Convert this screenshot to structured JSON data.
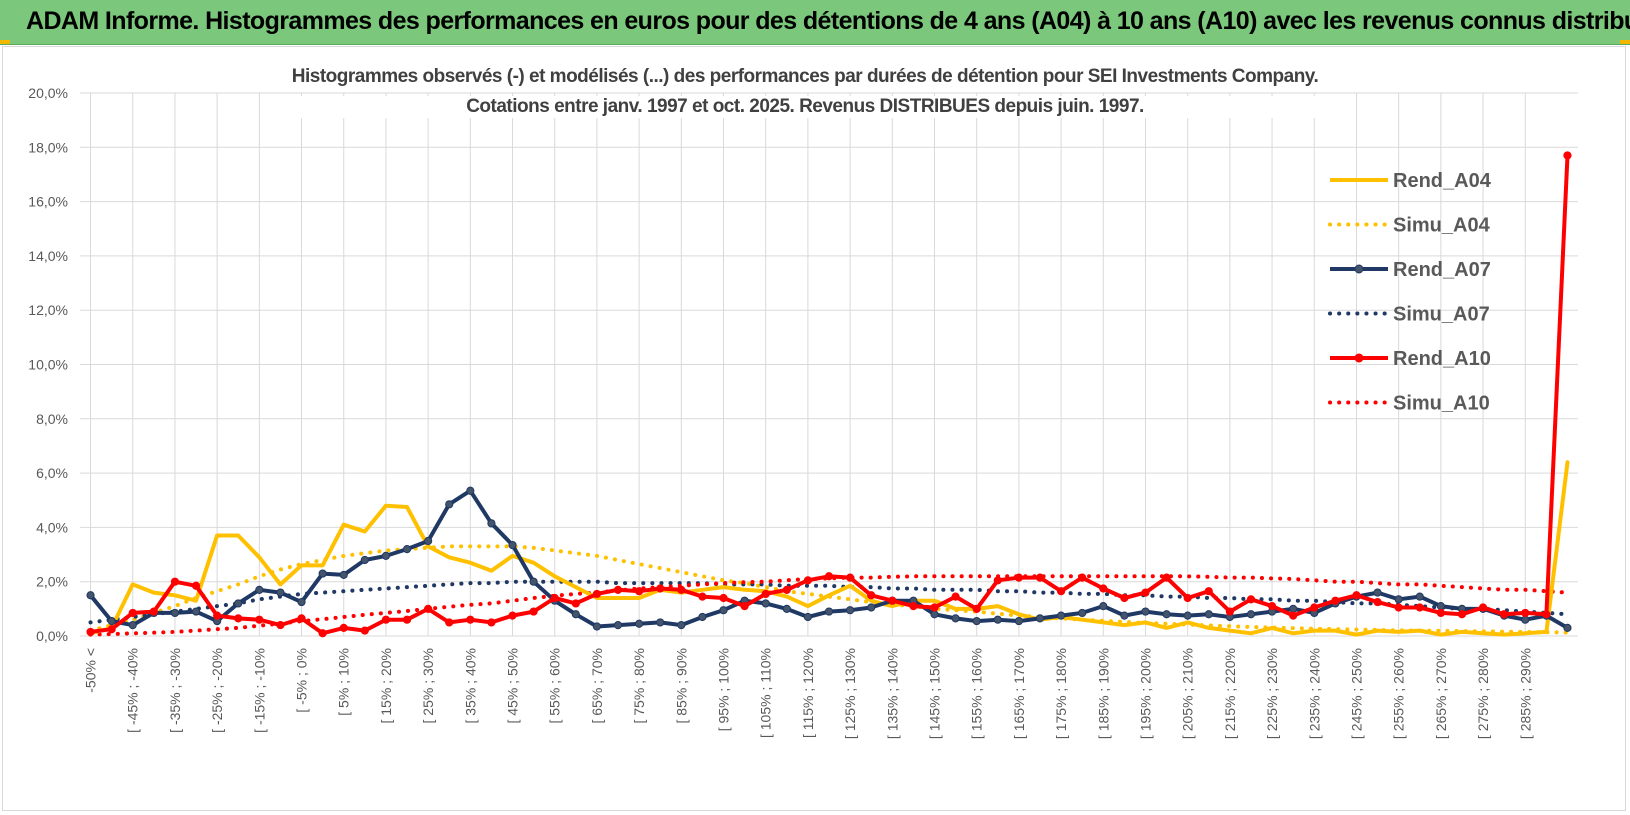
{
  "banner": {
    "title": "ADAM Informe. Histogrammes des performances en euros pour des détentions de 4 ans (A04) à 10 ans (A10) avec les revenus connus distribués"
  },
  "colors": {
    "banner_bg": "#7bc77b",
    "A04": "#ffc000",
    "A07": "#1f3864",
    "A10": "#ff0000",
    "grid": "#d9d9d9",
    "axis_text": "#595959"
  },
  "chart_data": {
    "type": "line",
    "title_line1": "Histogrammes observés (-) et modélisés (...) des performances par durées de détention pour SEI Investments Company.",
    "title_line2": "Cotations entre janv. 1997 et oct. 2025.  Revenus DISTRIBUES depuis juin. 1997.",
    "xlabel": "",
    "ylabel": "",
    "ylim": [
      0,
      20
    ],
    "y_unit": "%",
    "yticks": [
      "0,0%",
      "2,0%",
      "4,0%",
      "6,0%",
      "8,0%",
      "10,0%",
      "12,0%",
      "14,0%",
      "16,0%",
      "18,0%",
      "20,0%"
    ],
    "grid": true,
    "legend_position": "right",
    "category_labels": [
      "-50% <",
      "[ -45% ; -40%",
      "[ -35% ; -30%",
      "[ -25% ; -20%",
      "[ -15% ; -10%",
      "[ -5% ; 0%",
      "[ 5% ; 10%",
      "[ 15% ; 20%",
      "[ 25% ; 30%",
      "[ 35% ; 40%",
      "[ 45% ; 50%",
      "[ 55% ; 60%",
      "[ 65% ; 70%",
      "[ 75% ; 80%",
      "[ 85% ; 90%",
      "[ 95% ; 100%",
      "[ 105% ; 110%",
      "[ 115% ; 120%",
      "[ 125% ; 130%",
      "[ 135% ; 140%",
      "[ 145% ; 150%",
      "[ 155% ; 160%",
      "[ 165% ; 170%",
      "[ 175% ; 180%",
      "[ 185% ; 190%",
      "[ 195% ; 200%",
      "[ 205% ; 210%",
      "[ 215% ; 220%",
      "[ 225% ; 230%",
      "[ 235% ; 240%",
      "[ 245% ; 250%",
      "[ 255% ; 260%",
      "[ 265% ; 270%",
      "[ 275% ; 280%",
      "[ 285% ; 290%"
    ],
    "category_count": 71,
    "series": [
      {
        "name": "Rend_A04",
        "style": "solid",
        "markers": false,
        "color": "#ffc000",
        "values": [
          0.1,
          0.3,
          1.9,
          1.6,
          1.5,
          1.3,
          3.7,
          3.7,
          2.9,
          1.9,
          2.6,
          2.6,
          4.1,
          3.85,
          4.8,
          4.75,
          3.3,
          2.9,
          2.7,
          2.4,
          2.95,
          2.7,
          2.2,
          1.8,
          1.4,
          1.4,
          1.4,
          1.7,
          1.6,
          1.7,
          1.8,
          1.7,
          1.65,
          1.45,
          1.1,
          1.5,
          1.85,
          1.3,
          1.1,
          1.3,
          1.3,
          1.0,
          1.0,
          1.1,
          0.8,
          0.6,
          0.7,
          0.6,
          0.5,
          0.4,
          0.5,
          0.3,
          0.5,
          0.3,
          0.2,
          0.1,
          0.3,
          0.1,
          0.2,
          0.2,
          0.05,
          0.2,
          0.15,
          0.2,
          0.05,
          0.15,
          0.1,
          0.05,
          0.1,
          0.15,
          6.4
        ]
      },
      {
        "name": "Simu_A04",
        "style": "dotted",
        "markers": false,
        "color": "#ffc000",
        "values": [
          0.2,
          0.4,
          0.6,
          0.85,
          1.1,
          1.4,
          1.65,
          1.9,
          2.2,
          2.45,
          2.65,
          2.8,
          2.95,
          3.05,
          3.15,
          3.2,
          3.25,
          3.3,
          3.3,
          3.3,
          3.3,
          3.25,
          3.15,
          3.05,
          2.95,
          2.8,
          2.65,
          2.5,
          2.35,
          2.2,
          2.05,
          1.95,
          1.8,
          1.65,
          1.55,
          1.45,
          1.35,
          1.25,
          1.15,
          1.1,
          1.0,
          0.95,
          0.9,
          0.82,
          0.75,
          0.7,
          0.65,
          0.6,
          0.56,
          0.52,
          0.48,
          0.45,
          0.42,
          0.39,
          0.36,
          0.33,
          0.31,
          0.29,
          0.27,
          0.25,
          0.24,
          0.22,
          0.21,
          0.2,
          0.19,
          0.18,
          0.17,
          0.16,
          0.15,
          0.14,
          0.13
        ]
      },
      {
        "name": "Rend_A07",
        "style": "solid",
        "markers": true,
        "color": "#1f3864",
        "values": [
          1.5,
          0.55,
          0.4,
          0.85,
          0.85,
          0.9,
          0.55,
          1.2,
          1.7,
          1.6,
          1.25,
          2.3,
          2.25,
          2.8,
          2.95,
          3.2,
          3.5,
          4.85,
          5.35,
          4.15,
          3.35,
          2.0,
          1.3,
          0.8,
          0.35,
          0.4,
          0.45,
          0.5,
          0.4,
          0.7,
          0.95,
          1.3,
          1.2,
          1.0,
          0.7,
          0.9,
          0.95,
          1.05,
          1.3,
          1.3,
          0.8,
          0.65,
          0.55,
          0.6,
          0.55,
          0.65,
          0.75,
          0.85,
          1.1,
          0.75,
          0.9,
          0.8,
          0.75,
          0.8,
          0.7,
          0.8,
          0.9,
          1.0,
          0.85,
          1.2,
          1.45,
          1.6,
          1.35,
          1.45,
          1.1,
          1.0,
          1.0,
          0.75,
          0.6,
          0.75,
          0.3
        ]
      },
      {
        "name": "Simu_A07",
        "style": "dotted",
        "markers": false,
        "color": "#1f3864",
        "values": [
          0.5,
          0.6,
          0.7,
          0.8,
          0.9,
          1.0,
          1.1,
          1.2,
          1.35,
          1.45,
          1.55,
          1.6,
          1.65,
          1.7,
          1.75,
          1.8,
          1.85,
          1.9,
          1.95,
          1.95,
          2.0,
          2.0,
          2.0,
          2.0,
          2.0,
          1.95,
          1.95,
          1.95,
          1.95,
          1.95,
          1.9,
          1.9,
          1.9,
          1.85,
          1.85,
          1.85,
          1.8,
          1.8,
          1.75,
          1.75,
          1.7,
          1.7,
          1.7,
          1.65,
          1.65,
          1.6,
          1.6,
          1.55,
          1.55,
          1.5,
          1.5,
          1.45,
          1.45,
          1.4,
          1.4,
          1.35,
          1.35,
          1.3,
          1.3,
          1.25,
          1.2,
          1.2,
          1.15,
          1.1,
          1.05,
          1.0,
          1.0,
          0.95,
          0.9,
          0.85,
          0.8
        ]
      },
      {
        "name": "Rend_A10",
        "style": "solid",
        "markers": true,
        "color": "#ff0000",
        "values": [
          0.15,
          0.25,
          0.85,
          0.9,
          2.0,
          1.85,
          0.75,
          0.65,
          0.6,
          0.4,
          0.65,
          0.1,
          0.3,
          0.2,
          0.6,
          0.6,
          1.0,
          0.5,
          0.6,
          0.5,
          0.75,
          0.9,
          1.4,
          1.2,
          1.55,
          1.7,
          1.65,
          1.75,
          1.7,
          1.45,
          1.4,
          1.1,
          1.55,
          1.7,
          2.05,
          2.2,
          2.15,
          1.5,
          1.3,
          1.1,
          1.05,
          1.45,
          1.0,
          2.05,
          2.15,
          2.15,
          1.65,
          2.15,
          1.75,
          1.4,
          1.6,
          2.15,
          1.4,
          1.65,
          0.9,
          1.35,
          1.1,
          0.75,
          1.05,
          1.3,
          1.5,
          1.25,
          1.05,
          1.05,
          0.85,
          0.8,
          1.05,
          0.8,
          0.85,
          0.8,
          17.7
        ]
      },
      {
        "name": "Simu_A10",
        "style": "dotted",
        "markers": false,
        "color": "#ff0000",
        "values": [
          0.05,
          0.07,
          0.1,
          0.12,
          0.15,
          0.2,
          0.25,
          0.3,
          0.38,
          0.46,
          0.55,
          0.62,
          0.7,
          0.78,
          0.85,
          0.92,
          1.0,
          1.08,
          1.15,
          1.2,
          1.3,
          1.4,
          1.48,
          1.55,
          1.6,
          1.68,
          1.75,
          1.8,
          1.85,
          1.9,
          1.95,
          1.98,
          2.0,
          2.05,
          2.1,
          2.12,
          2.15,
          2.15,
          2.18,
          2.2,
          2.2,
          2.2,
          2.2,
          2.2,
          2.2,
          2.2,
          2.2,
          2.2,
          2.2,
          2.2,
          2.2,
          2.2,
          2.2,
          2.18,
          2.15,
          2.15,
          2.12,
          2.1,
          2.05,
          2.0,
          2.0,
          1.95,
          1.9,
          1.9,
          1.85,
          1.8,
          1.75,
          1.7,
          1.7,
          1.65,
          1.6
        ]
      }
    ]
  }
}
